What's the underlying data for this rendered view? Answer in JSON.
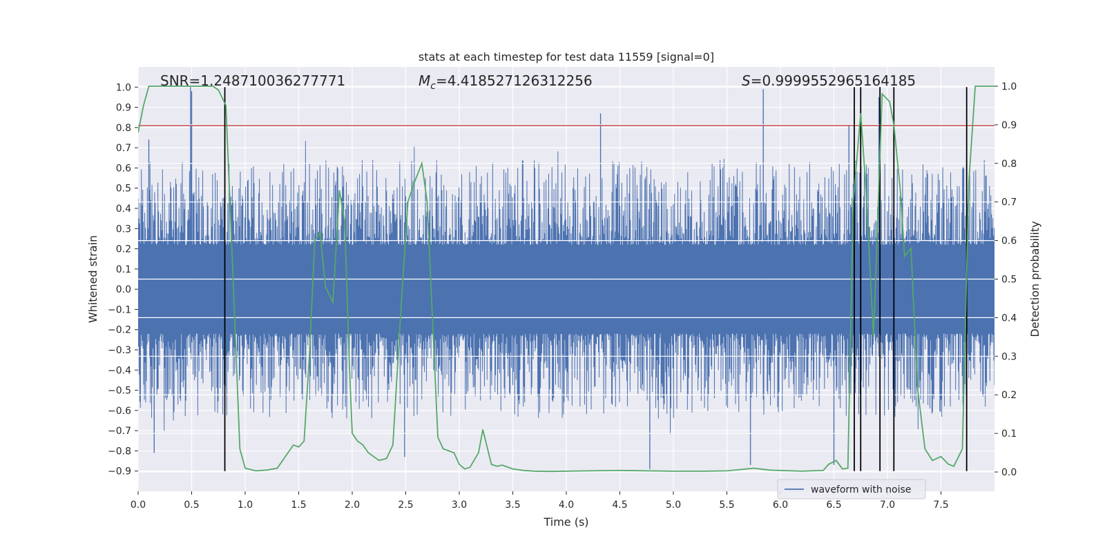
{
  "chart_data": {
    "type": "line",
    "title": "stats at each timestep for test data 11559 [signal=0]",
    "xlabel": "Time (s)",
    "ylabel": "Whitened strain",
    "y2label": "Detection probability",
    "xlim": [
      0.0,
      8.0
    ],
    "ylim": [
      -1.0,
      1.1
    ],
    "y2lim": [
      -0.05,
      1.05
    ],
    "xticks": [
      0.0,
      0.5,
      1.0,
      1.5,
      2.0,
      2.5,
      3.0,
      3.5,
      4.0,
      4.5,
      5.0,
      5.5,
      6.0,
      6.5,
      7.0,
      7.5
    ],
    "xtick_labels": [
      "0.0",
      "0.5",
      "1.0",
      "1.5",
      "2.0",
      "2.5",
      "3.0",
      "3.5",
      "4.0",
      "4.5",
      "5.0",
      "5.5",
      "6.0",
      "6.5",
      "7.0",
      "7.5"
    ],
    "yticks": [
      1.0,
      0.9,
      0.8,
      0.7,
      0.6,
      0.5,
      0.4,
      0.3,
      0.2,
      0.1,
      0.0,
      -0.1,
      -0.2,
      -0.3,
      -0.4,
      -0.5,
      -0.6,
      -0.7,
      -0.8,
      -0.9
    ],
    "ytick_labels": [
      "1.0",
      "0.9",
      "0.8",
      "0.7",
      "0.6",
      "0.5",
      "0.4",
      "0.3",
      "0.2",
      "0.1",
      "0.0",
      "−0.1",
      "−0.2",
      "−0.3",
      "−0.4",
      "−0.5",
      "−0.6",
      "−0.7",
      "−0.8",
      "−0.9"
    ],
    "y2ticks": [
      1.0,
      0.9,
      0.8,
      0.7,
      0.6,
      0.5,
      0.4,
      0.3,
      0.2,
      0.1,
      0.0
    ],
    "y2tick_labels": [
      "1.0",
      "0.9",
      "0.8",
      "0.7",
      "0.6",
      "0.5",
      "0.4",
      "0.3",
      "0.2",
      "0.1",
      "0.0"
    ],
    "annotations": {
      "snr": "SNR=1.248710036277771",
      "mc_symbol": "M",
      "mc_sub": "c",
      "mc_value": "=4.418527126312256",
      "s_symbol": "S",
      "s_value": "=0.9999552965164185"
    },
    "threshold": {
      "axis": "y",
      "value": 0.81,
      "color": "#c44e52"
    },
    "vertical_lines": {
      "x": [
        0.81,
        6.69,
        6.75,
        6.93,
        7.06,
        7.74
      ],
      "y_range": [
        -0.9,
        1.0
      ],
      "color": "#000000"
    },
    "series": [
      {
        "name": "waveform with noise",
        "color": "#4c72b0",
        "kind": "noise",
        "envelope_typical": [
          -0.45,
          0.45
        ],
        "spikes": [
          {
            "x": 0.49,
            "y": 1.0
          },
          {
            "x": 0.5,
            "y": 0.98
          },
          {
            "x": 0.1,
            "y": 0.74
          },
          {
            "x": 4.32,
            "y": 0.87
          },
          {
            "x": 5.84,
            "y": 0.99
          },
          {
            "x": 6.92,
            "y": 0.95
          },
          {
            "x": 6.64,
            "y": 0.81
          },
          {
            "x": 0.15,
            "y": -0.81
          },
          {
            "x": 4.78,
            "y": -0.89
          },
          {
            "x": 5.72,
            "y": -0.87
          },
          {
            "x": 2.49,
            "y": -0.83
          },
          {
            "x": 6.5,
            "y": -0.87
          }
        ]
      },
      {
        "name": "detection probability",
        "color": "#55a868",
        "axis": "y2",
        "x": [
          0.0,
          0.05,
          0.1,
          0.2,
          0.3,
          0.4,
          0.5,
          0.6,
          0.7,
          0.75,
          0.82,
          0.88,
          0.95,
          1.0,
          1.1,
          1.2,
          1.3,
          1.4,
          1.45,
          1.5,
          1.55,
          1.6,
          1.65,
          1.7,
          1.75,
          1.82,
          1.88,
          1.93,
          1.97,
          2.0,
          2.05,
          2.1,
          2.15,
          2.25,
          2.32,
          2.38,
          2.45,
          2.52,
          2.58,
          2.65,
          2.7,
          2.8,
          2.85,
          2.95,
          3.0,
          3.05,
          3.1,
          3.18,
          3.22,
          3.3,
          3.35,
          3.4,
          3.5,
          3.6,
          3.7,
          3.8,
          3.9,
          4.0,
          4.2,
          4.5,
          5.0,
          5.3,
          5.5,
          5.65,
          5.75,
          5.9,
          6.2,
          6.4,
          6.45,
          6.52,
          6.58,
          6.63,
          6.68,
          6.75,
          6.8,
          6.87,
          6.95,
          7.02,
          7.06,
          7.12,
          7.16,
          7.22,
          7.28,
          7.35,
          7.42,
          7.5,
          7.57,
          7.62,
          7.7,
          7.76,
          7.82,
          7.86,
          7.95,
          8.0
        ],
        "y": [
          0.88,
          0.95,
          1.0,
          1.0,
          1.0,
          1.0,
          1.0,
          1.0,
          1.0,
          0.99,
          0.95,
          0.55,
          0.06,
          0.01,
          0.003,
          0.005,
          0.01,
          0.05,
          0.07,
          0.065,
          0.08,
          0.3,
          0.6,
          0.62,
          0.48,
          0.44,
          0.73,
          0.65,
          0.3,
          0.1,
          0.08,
          0.07,
          0.05,
          0.03,
          0.035,
          0.07,
          0.4,
          0.7,
          0.75,
          0.8,
          0.7,
          0.09,
          0.06,
          0.05,
          0.02,
          0.008,
          0.012,
          0.05,
          0.11,
          0.02,
          0.015,
          0.018,
          0.008,
          0.004,
          0.002,
          0.0015,
          0.0015,
          0.002,
          0.003,
          0.004,
          0.002,
          0.002,
          0.003,
          0.007,
          0.01,
          0.005,
          0.002,
          0.004,
          0.02,
          0.03,
          0.008,
          0.01,
          0.7,
          0.93,
          0.73,
          0.35,
          0.98,
          0.96,
          0.9,
          0.73,
          0.56,
          0.58,
          0.22,
          0.06,
          0.03,
          0.04,
          0.02,
          0.015,
          0.06,
          0.75,
          1.0,
          1.0,
          1.0,
          1.0
        ]
      }
    ],
    "legend": {
      "entries": [
        "waveform with noise"
      ],
      "loc": "lower-right"
    }
  }
}
